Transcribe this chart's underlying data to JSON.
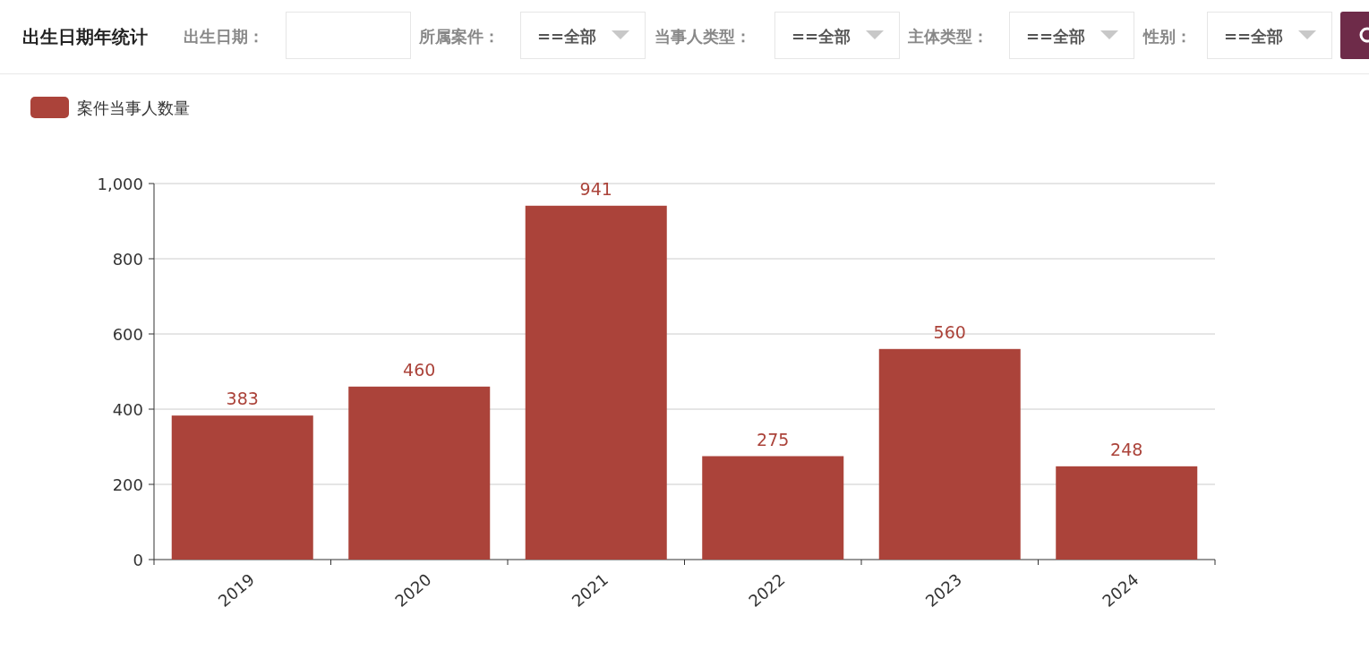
{
  "chart_data": {
    "type": "bar",
    "title": "出生日期年统计",
    "categories": [
      "2019",
      "2020",
      "2021",
      "2022",
      "2023",
      "2024"
    ],
    "series": [
      {
        "name": "案件当事人数量",
        "color": "#ab433a",
        "values": [
          383,
          460,
          941,
          275,
          560,
          248
        ]
      }
    ],
    "ylim": [
      0,
      1000
    ],
    "yticks": [
      0,
      200,
      400,
      600,
      800,
      {
        "value": 1000,
        "label": "1,000"
      }
    ],
    "grid": "y",
    "legend": "top left",
    "data_labels": true,
    "annotations": [
      "出生日期：",
      "所属案件：",
      "==全部",
      "当事人类型：",
      "==全部",
      "主体类型：",
      "==全部",
      "性别：",
      "==全部"
    ]
  }
}
